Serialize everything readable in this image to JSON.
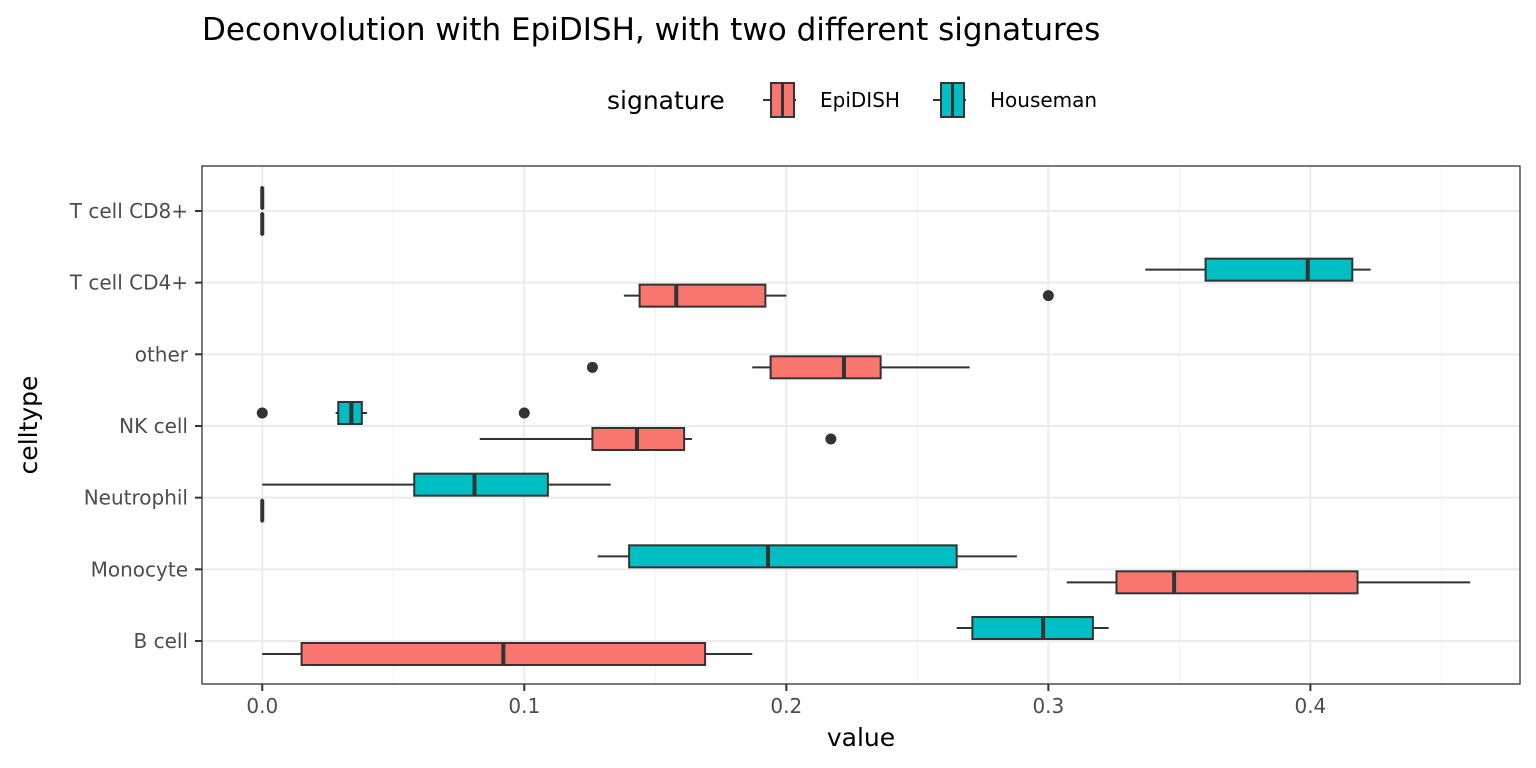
{
  "chart_data": {
    "type": "boxplot",
    "orientation": "horizontal",
    "title": "Deconvolution with EpiDISH, with two different signatures",
    "xlabel": "value",
    "ylabel": "celltype",
    "xlim": [
      -0.023,
      0.48
    ],
    "x_ticks": [
      0.0,
      0.1,
      0.2,
      0.3,
      0.4
    ],
    "x_tick_labels": [
      "0.0",
      "0.1",
      "0.2",
      "0.3",
      "0.4"
    ],
    "categories": [
      "B cell",
      "Monocyte",
      "Neutrophil",
      "NK cell",
      "other",
      "T cell CD4+",
      "T cell CD8+"
    ],
    "grid": true,
    "legend": {
      "title": "signature",
      "position": "top"
    },
    "series": [
      {
        "name": "EpiDISH",
        "color": "#F8766D",
        "boxes": [
          {
            "category": "B cell",
            "whisker_low": 0.0,
            "q1": 0.015,
            "median": 0.092,
            "q3": 0.169,
            "whisker_high": 0.187,
            "outliers": []
          },
          {
            "category": "Monocyte",
            "whisker_low": 0.307,
            "q1": 0.326,
            "median": 0.348,
            "q3": 0.418,
            "whisker_high": 0.461,
            "outliers": []
          },
          {
            "category": "Neutrophil",
            "whisker_low": 0.0,
            "q1": 0.0,
            "median": 0.0,
            "q3": 0.0,
            "whisker_high": 0.0,
            "outliers": []
          },
          {
            "category": "NK cell",
            "whisker_low": 0.083,
            "q1": 0.126,
            "median": 0.143,
            "q3": 0.161,
            "whisker_high": 0.164,
            "outliers": [
              0.217
            ]
          },
          {
            "category": "other",
            "whisker_low": 0.187,
            "q1": 0.194,
            "median": 0.222,
            "q3": 0.236,
            "whisker_high": 0.27,
            "outliers": [
              0.126
            ]
          },
          {
            "category": "T cell CD4+",
            "whisker_low": 0.138,
            "q1": 0.144,
            "median": 0.158,
            "q3": 0.192,
            "whisker_high": 0.2,
            "outliers": [
              0.3
            ]
          },
          {
            "category": "T cell CD8+",
            "whisker_low": 0.0,
            "q1": 0.0,
            "median": 0.0,
            "q3": 0.0,
            "whisker_high": 0.0,
            "outliers": []
          }
        ]
      },
      {
        "name": "Houseman",
        "color": "#00BFC4",
        "boxes": [
          {
            "category": "B cell",
            "whisker_low": 0.265,
            "q1": 0.271,
            "median": 0.298,
            "q3": 0.317,
            "whisker_high": 0.323,
            "outliers": []
          },
          {
            "category": "Monocyte",
            "whisker_low": 0.128,
            "q1": 0.14,
            "median": 0.193,
            "q3": 0.265,
            "whisker_high": 0.288,
            "outliers": []
          },
          {
            "category": "Neutrophil",
            "whisker_low": 0.0,
            "q1": 0.058,
            "median": 0.081,
            "q3": 0.109,
            "whisker_high": 0.133,
            "outliers": []
          },
          {
            "category": "NK cell",
            "whisker_low": 0.028,
            "q1": 0.029,
            "median": 0.034,
            "q3": 0.038,
            "whisker_high": 0.04,
            "outliers": [
              0.0,
              0.1
            ]
          },
          {
            "category": "other",
            "whisker_low": null,
            "q1": null,
            "median": null,
            "q3": null,
            "whisker_high": null,
            "outliers": []
          },
          {
            "category": "T cell CD4+",
            "whisker_low": 0.337,
            "q1": 0.36,
            "median": 0.399,
            "q3": 0.416,
            "whisker_high": 0.423,
            "outliers": []
          },
          {
            "category": "T cell CD8+",
            "whisker_low": 0.0,
            "q1": 0.0,
            "median": 0.0,
            "q3": 0.0,
            "whisker_high": 0.0,
            "outliers": []
          }
        ]
      }
    ]
  }
}
